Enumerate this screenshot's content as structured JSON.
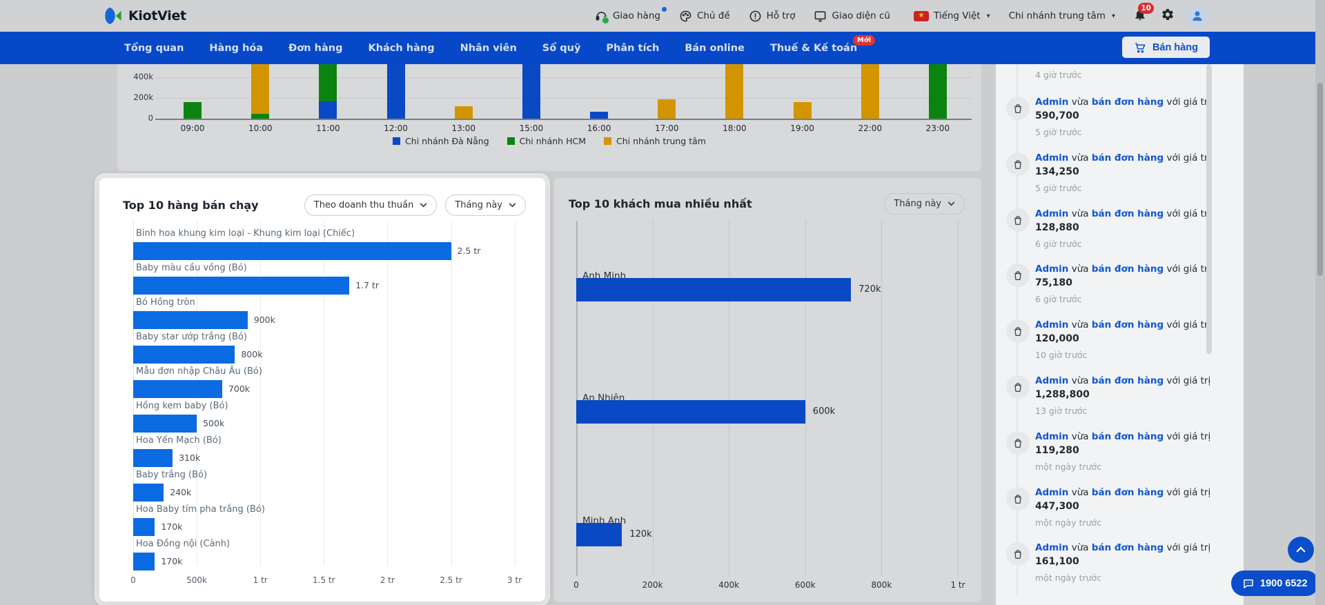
{
  "header": {
    "brand": "KiotViet",
    "menu": {
      "delivery": "Giao hàng",
      "theme": "Chủ đề",
      "support": "Hỗ trợ",
      "old_ui": "Giao diện cũ",
      "language": "Tiếng Việt",
      "branch": "Chi nhánh trung tâm"
    },
    "bell_badge": "10"
  },
  "nav": {
    "items": [
      {
        "label": "Tổng quan"
      },
      {
        "label": "Hàng hóa"
      },
      {
        "label": "Đơn hàng"
      },
      {
        "label": "Khách hàng"
      },
      {
        "label": "Nhân viên"
      },
      {
        "label": "Sổ quỹ"
      },
      {
        "label": "Phân tích"
      },
      {
        "label": "Bán online"
      },
      {
        "label": "Thuế & Kế toán",
        "badge": "Mới"
      }
    ],
    "sell_button": "Bán hàng"
  },
  "panels": {
    "top_products": {
      "title": "Top 10 hàng bán chạy",
      "filter_metric": "Theo doanh thu thuần",
      "filter_period": "Tháng này"
    },
    "top_customers": {
      "title": "Top 10 khách mua nhiều nhất",
      "filter_period": "Tháng này"
    }
  },
  "chart_data": [
    {
      "id": "hourly_revenue_by_branch",
      "type": "bar",
      "stacked": true,
      "note": "viewport is scrolled; bars taller than ~530k are clipped at top",
      "categories": [
        "09:00",
        "10:00",
        "11:00",
        "12:00",
        "13:00",
        "15:00",
        "16:00",
        "17:00",
        "18:00",
        "19:00",
        "22:00",
        "23:00"
      ],
      "series": [
        {
          "name": "Chi nhánh Đà Nẵng",
          "color": "#0a49c4",
          "values": [
            0,
            0,
            165000,
            600000,
            0,
            600000,
            70000,
            0,
            0,
            0,
            0,
            0
          ]
        },
        {
          "name": "Chi nhánh HCM",
          "color": "#0c830f",
          "values": [
            160000,
            45000,
            440000,
            0,
            0,
            0,
            0,
            0,
            0,
            0,
            0,
            600000
          ]
        },
        {
          "name": "Chi nhánh trung tâm",
          "color": "#d29500",
          "values": [
            0,
            560000,
            0,
            0,
            120000,
            0,
            0,
            185000,
            600000,
            160000,
            600000,
            0
          ]
        }
      ],
      "y_ticks": [
        {
          "value": 0,
          "label": "0"
        },
        {
          "value": 200000,
          "label": "200k"
        },
        {
          "value": 400000,
          "label": "400k"
        }
      ],
      "legend_position": "bottom",
      "grid": true
    },
    {
      "id": "top_products_by_net_revenue",
      "type": "bar",
      "orientation": "horizontal",
      "title": "Top 10 hàng bán chạy",
      "categories": [
        "Bình hoa khung kim loại - Khung kim loại (Chiếc)",
        "Baby màu cầu vồng (Bó)",
        "Bó Hồng tròn",
        "Baby star ướp trắng (Bó)",
        "Mẫu đơn nhập Châu Âu (Bó)",
        "Hồng kem baby (Bó)",
        "Hoa Yến Mạch (Bó)",
        "Baby trắng (Bó)",
        "Hoa Baby tím pha trắng (Bó)",
        "Hoa Đồng nội (Cành)"
      ],
      "values": [
        2500000,
        1700000,
        900000,
        800000,
        700000,
        500000,
        310000,
        240000,
        170000,
        170000
      ],
      "value_labels": [
        "2.5 tr",
        "1.7 tr",
        "900k",
        "800k",
        "700k",
        "500k",
        "310k",
        "240k",
        "170k",
        "170k"
      ],
      "x_ticks": [
        {
          "value": 0,
          "label": "0"
        },
        {
          "value": 500000,
          "label": "500k"
        },
        {
          "value": 1000000,
          "label": "1 tr"
        },
        {
          "value": 1500000,
          "label": "1.5 tr"
        },
        {
          "value": 2000000,
          "label": "2 tr"
        },
        {
          "value": 2500000,
          "label": "2.5 tr"
        },
        {
          "value": 3000000,
          "label": "3 tr"
        }
      ],
      "xlim": [
        0,
        3000000
      ],
      "bar_color": "#0b6be2",
      "grid": true
    },
    {
      "id": "top_customers_by_purchase",
      "type": "bar",
      "orientation": "horizontal",
      "title": "Top 10 khách mua nhiều nhất",
      "categories": [
        "Anh Minh",
        "An Nhiên",
        "Minh Anh"
      ],
      "values": [
        720000,
        600000,
        120000
      ],
      "value_labels": [
        "720k",
        "600k",
        "120k"
      ],
      "x_ticks": [
        {
          "value": 0,
          "label": "0"
        },
        {
          "value": 200000,
          "label": "200k"
        },
        {
          "value": 400000,
          "label": "400k"
        },
        {
          "value": 600000,
          "label": "600k"
        },
        {
          "value": 800000,
          "label": "800k"
        },
        {
          "value": 1000000,
          "label": "1 tr"
        }
      ],
      "xlim": [
        0,
        1000000
      ],
      "bar_color": "#0a49c4",
      "grid": true
    }
  ],
  "activity": {
    "items": [
      {
        "partial": true,
        "time": "4 giờ trước"
      },
      {
        "user": "Admin",
        "mid": "vừa",
        "action": "bán đơn hàng",
        "tail": "với giá trị",
        "value": "590,700",
        "time": "5 giờ trước"
      },
      {
        "user": "Admin",
        "mid": "vừa",
        "action": "bán đơn hàng",
        "tail": "với giá trị",
        "value": "134,250",
        "time": "5 giờ trước"
      },
      {
        "user": "Admin",
        "mid": "vừa",
        "action": "bán đơn hàng",
        "tail": "với giá trị",
        "value": "128,880",
        "time": "6 giờ trước"
      },
      {
        "user": "Admin",
        "mid": "vừa",
        "action": "bán đơn hàng",
        "tail": "với giá trị",
        "value": "75,180",
        "time": "6 giờ trước"
      },
      {
        "user": "Admin",
        "mid": "vừa",
        "action": "bán đơn hàng",
        "tail": "với giá trị",
        "value": "120,000",
        "time": "10 giờ trước"
      },
      {
        "user": "Admin",
        "mid": "vừa",
        "action": "bán đơn hàng",
        "tail": "với giá trị",
        "value": "1,288,800",
        "time": "13 giờ trước"
      },
      {
        "user": "Admin",
        "mid": "vừa",
        "action": "bán đơn hàng",
        "tail": "với giá trị",
        "value": "119,280",
        "time": "một ngày trước"
      },
      {
        "user": "Admin",
        "mid": "vừa",
        "action": "bán đơn hàng",
        "tail": "với giá trị",
        "value": "447,300",
        "time": "một ngày trước"
      },
      {
        "user": "Admin",
        "mid": "vừa",
        "action": "bán đơn hàng",
        "tail": "với giá trị",
        "value": "161,100",
        "time": "một ngày trước"
      }
    ]
  },
  "floating": {
    "hotline": "1900 6522"
  },
  "colors": {
    "nav_blue": "#0748c8",
    "link_blue": "#1157d0",
    "bar_blue_dim": "#0a49c4",
    "bar_blue_bright": "#0b6be2",
    "bar_green": "#0c830f",
    "bar_orange": "#d29500",
    "badge_red": "#e03434"
  }
}
